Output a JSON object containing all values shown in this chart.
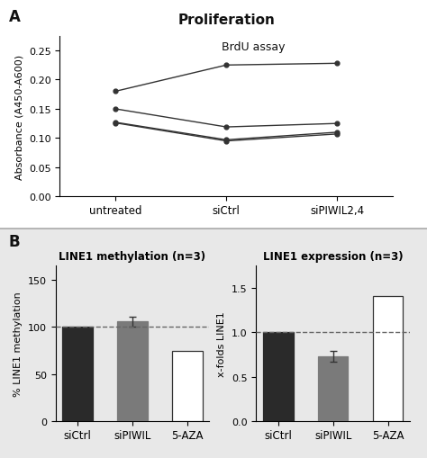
{
  "panel_A": {
    "title": "Proliferation",
    "subtitle": "BrdU assay",
    "xlabel_ticks": [
      "untreated",
      "siCtrl",
      "siPIWIL2,4"
    ],
    "ylabel": "Absorbance (A450-A600)",
    "ylim": [
      0.0,
      0.275
    ],
    "yticks": [
      0.0,
      0.05,
      0.1,
      0.15,
      0.2,
      0.25
    ],
    "lines": [
      [
        0.18,
        0.225,
        0.228
      ],
      [
        0.15,
        0.119,
        0.125
      ],
      [
        0.127,
        0.097,
        0.11
      ],
      [
        0.126,
        0.095,
        0.107
      ]
    ],
    "line_color": "#333333",
    "marker": "o",
    "marker_size": 3.5,
    "line_width": 1.0
  },
  "panel_B_left": {
    "title": "LINE1 methylation (n=3)",
    "ylabel": "% LINE1 methylation",
    "categories": [
      "siCtrl",
      "siPIWIL",
      "5-AZA"
    ],
    "values": [
      100.0,
      105.5,
      74.5
    ],
    "errors": [
      0.0,
      5.5,
      0.0
    ],
    "bar_colors": [
      "#2a2a2a",
      "#7a7a7a",
      "#ffffff"
    ],
    "bar_edgecolors": [
      "#2a2a2a",
      "#7a7a7a",
      "#333333"
    ],
    "ylim": [
      0,
      165
    ],
    "yticks": [
      0,
      50,
      100,
      150
    ],
    "dashed_line_y": 100
  },
  "panel_B_right": {
    "title": "LINE1 expression (n=3)",
    "ylabel": "x-folds LINE1",
    "categories": [
      "siCtrl",
      "siPIWIL",
      "5-AZA"
    ],
    "values": [
      1.0,
      0.73,
      1.4
    ],
    "errors": [
      0.0,
      0.06,
      0.0
    ],
    "bar_colors": [
      "#2a2a2a",
      "#7a7a7a",
      "#ffffff"
    ],
    "bar_edgecolors": [
      "#2a2a2a",
      "#7a7a7a",
      "#333333"
    ],
    "ylim": [
      0,
      1.75
    ],
    "yticks": [
      0.0,
      0.5,
      1.0,
      1.5
    ],
    "dashed_line_y": 1.0
  },
  "label_A": "A",
  "label_B": "B",
  "bg_color_A": "#ffffff",
  "bg_color_B": "#e8e8e8",
  "separator_color": "#aaaaaa"
}
